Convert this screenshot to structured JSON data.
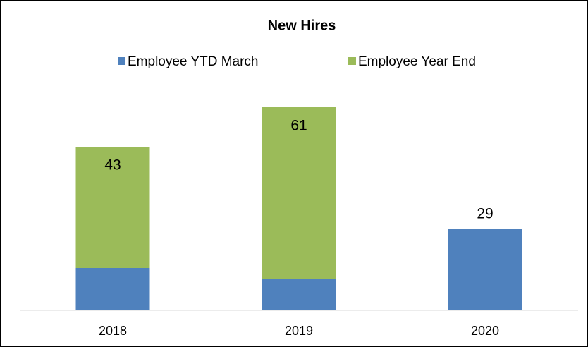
{
  "chart_data": {
    "type": "stacked_bar",
    "title": "New Hires",
    "categories": [
      "2018",
      "2019",
      "2020"
    ],
    "series": [
      {
        "name": "Employee YTD March",
        "color": "#4f81bd",
        "values": [
          15,
          11,
          29
        ]
      },
      {
        "name": "Employee Year End",
        "color": "#9bbb59",
        "values": [
          43,
          61,
          null
        ]
      }
    ],
    "ylim": [
      0,
      80
    ]
  }
}
